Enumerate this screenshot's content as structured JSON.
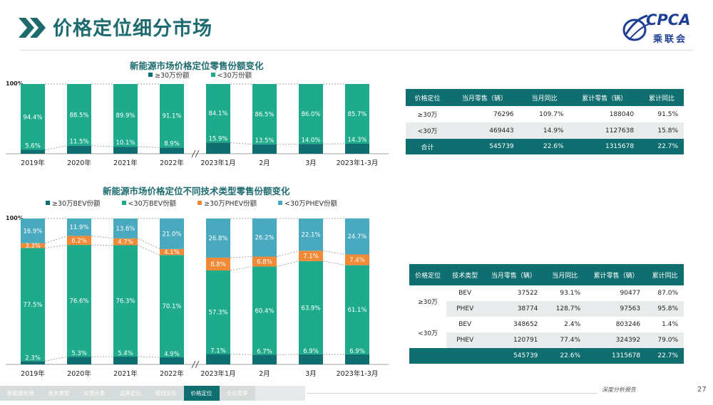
{
  "header": {
    "title": "价格定位细分市场"
  },
  "logo": {
    "brand": "CPCA",
    "sub": "乘联会"
  },
  "footer": {
    "nav": [
      "新能源市场",
      "技术类型",
      "车型大类",
      "品牌定位",
      "级别定位",
      "价格定位",
      "企业竞争"
    ],
    "active_index": 5,
    "report": "深度分析报告",
    "page": "27"
  },
  "colors": {
    "dark": "#0f6e6f",
    "teal": "#1dab8c",
    "orange": "#f08a37",
    "blue": "#49a9bf"
  },
  "chart_data": [
    {
      "type": "bar",
      "stacked": true,
      "title": "新能源市场价格定位零售份额变化",
      "ylabel_top": "100%",
      "categories": [
        "2019年",
        "2020年",
        "2021年",
        "2022年",
        "2023年1月",
        "2月",
        "3月",
        "2023年1-3月"
      ],
      "series": [
        {
          "name": "≥30万份额",
          "color": "#0f6e6f",
          "values": [
            5.6,
            11.5,
            10.1,
            8.9,
            15.9,
            13.5,
            14.0,
            14.3
          ]
        },
        {
          "name": "<30万份额",
          "color": "#1dab8c",
          "values": [
            94.4,
            88.5,
            89.9,
            91.1,
            84.1,
            86.5,
            86.0,
            85.7
          ]
        }
      ],
      "ylim": [
        0,
        100
      ]
    },
    {
      "type": "bar",
      "stacked": true,
      "title": "新能源市场价格定位不同技术类型零售份额变化",
      "ylabel_top": "100%",
      "categories": [
        "2019年",
        "2020年",
        "2021年",
        "2022年",
        "2023年1月",
        "2月",
        "3月",
        "2023年1-3月"
      ],
      "series": [
        {
          "name": "≥30万BEV份额",
          "color": "#0f6e6f",
          "values": [
            2.3,
            5.3,
            5.4,
            4.9,
            7.1,
            6.7,
            6.9,
            6.9
          ]
        },
        {
          "name": "<30万BEV份额",
          "color": "#1dab8c",
          "values": [
            77.5,
            76.6,
            76.3,
            70.1,
            57.3,
            60.4,
            63.9,
            61.1
          ]
        },
        {
          "name": "≥30万PHEV份额",
          "color": "#f08a37",
          "values": [
            3.3,
            6.2,
            4.7,
            4.1,
            8.8,
            6.8,
            7.1,
            7.4
          ]
        },
        {
          "name": "<30万PHEV份额",
          "color": "#49a9bf",
          "values": [
            16.9,
            11.9,
            13.6,
            21.0,
            26.8,
            26.2,
            22.1,
            24.7
          ]
        }
      ],
      "ylim": [
        0,
        100
      ]
    }
  ],
  "table1": {
    "headers": [
      "价格定位",
      "当月零售（辆）",
      "当月同比",
      "累计零售（辆）",
      "累计同比"
    ],
    "rows": [
      [
        "≥30万",
        "76296",
        "109.7%",
        "188040",
        "91.5%"
      ],
      [
        "<30万",
        "469443",
        "14.9%",
        "1127638",
        "15.8%"
      ]
    ],
    "total": [
      "合计",
      "545739",
      "22.6%",
      "1315678",
      "22.7%"
    ]
  },
  "table2": {
    "headers": [
      "价格定位",
      "技术类型",
      "当月零售（辆）",
      "当月同比",
      "累计零售（辆）",
      "累计同比"
    ],
    "groups": [
      {
        "label": "≥30万",
        "rows": [
          [
            "BEV",
            "37522",
            "93.1%",
            "90477",
            "87.0%"
          ],
          [
            "PHEV",
            "38774",
            "128.7%",
            "97563",
            "95.8%"
          ]
        ]
      },
      {
        "label": "<30万",
        "rows": [
          [
            "BEV",
            "348652",
            "2.4%",
            "803246",
            "1.4%"
          ],
          [
            "PHEV",
            "120791",
            "77.4%",
            "324392",
            "79.0%"
          ]
        ]
      }
    ],
    "total": [
      "545739",
      "22.6%",
      "1315678",
      "22.7%"
    ]
  }
}
